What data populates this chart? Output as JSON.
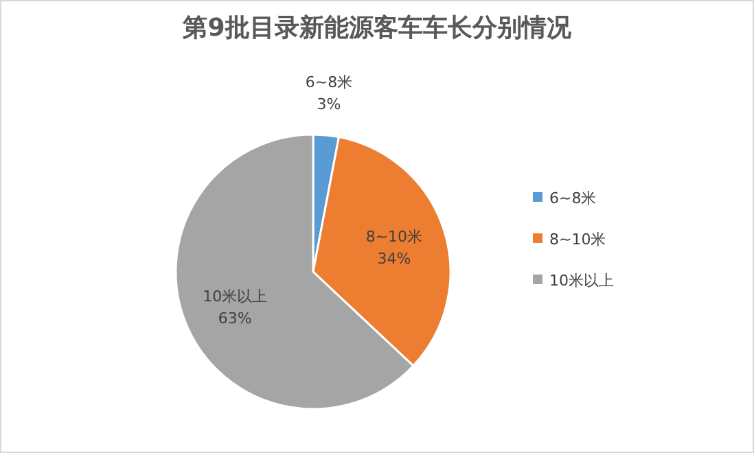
{
  "chart_data": {
    "type": "pie",
    "title": "第9批目录新能源客车车长分别情况",
    "categories": [
      "6~8米",
      "8~10米",
      "10米以上"
    ],
    "values": [
      3,
      34,
      63
    ],
    "colors": [
      "#5b9bd5",
      "#ed7d31",
      "#a5a5a5"
    ],
    "value_labels": [
      "3%",
      "34%",
      "63%"
    ],
    "legend": "right"
  }
}
